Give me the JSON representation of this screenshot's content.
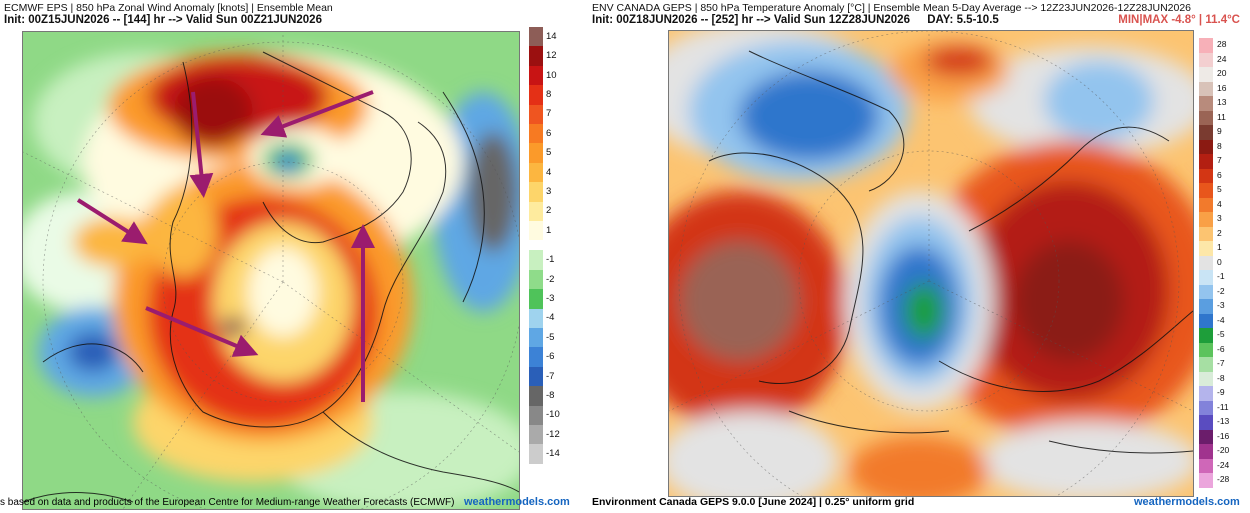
{
  "left": {
    "title": "ECMWF EPS | 850 hPa Zonal Wind Anomaly [knots] | Ensemble Mean",
    "init": "Init: 00Z15JUN2026 -- [144] hr --> Valid Sun 00Z21JUN2026",
    "footer": "s based on data and products of the European Centre for Medium-range Weather Forecasts (ECMWF)",
    "credit": "weathermodels.com",
    "colorbar": [
      {
        "label": "14",
        "color": "#8d5d57"
      },
      {
        "label": "12",
        "color": "#9b1010"
      },
      {
        "label": "10",
        "color": "#c81414"
      },
      {
        "label": "8",
        "color": "#e43016"
      },
      {
        "label": "7",
        "color": "#ef5520"
      },
      {
        "label": "6",
        "color": "#f77a22"
      },
      {
        "label": "5",
        "color": "#fb9a2a"
      },
      {
        "label": "4",
        "color": "#fcb640"
      },
      {
        "label": "3",
        "color": "#fdd56a"
      },
      {
        "label": "2",
        "color": "#feeb9e"
      },
      {
        "label": "1",
        "color": "#fffbe0"
      },
      {
        "label": "-1",
        "color": "#c8f0c0"
      },
      {
        "label": "-2",
        "color": "#8fdc8a"
      },
      {
        "label": "-3",
        "color": "#4fc35a"
      },
      {
        "label": "-4",
        "color": "#9fd3ee"
      },
      {
        "label": "-5",
        "color": "#5fa7e4"
      },
      {
        "label": "-6",
        "color": "#3c82d6"
      },
      {
        "label": "-7",
        "color": "#2a5fb8"
      },
      {
        "label": "-8",
        "color": "#666666"
      },
      {
        "label": "-10",
        "color": "#888888"
      },
      {
        "label": "-12",
        "color": "#aaaaaa"
      },
      {
        "label": "-14",
        "color": "#cccccc"
      }
    ]
  },
  "right": {
    "title": "ENV CANADA GEPS | 850 hPa Temperature Anomaly [°C] | Ensemble Mean 5-Day Average --> 12Z23JUN2026-12Z28JUN2026",
    "init": "Init: 00Z18JUN2026 -- [252] hr --> Valid Sun 12Z28JUN2026",
    "day": "DAY: 5.5-10.5",
    "minmax": "MIN|MAX -4.8° | 11.4°C",
    "footer": "Environment Canada GEPS 9.0.0 [June 2024] | 0.25° uniform grid",
    "credit": "weathermodels.com",
    "colorbar": [
      {
        "label": "28",
        "color": "#f7b0b8"
      },
      {
        "label": "24",
        "color": "#f3cfd0"
      },
      {
        "label": "20",
        "color": "#eeeae6"
      },
      {
        "label": "16",
        "color": "#d8c2b8"
      },
      {
        "label": "13",
        "color": "#b88b7c"
      },
      {
        "label": "11",
        "color": "#9a6455"
      },
      {
        "label": "9",
        "color": "#7a3b30"
      },
      {
        "label": "8",
        "color": "#8b1a12"
      },
      {
        "label": "7",
        "color": "#b31f12"
      },
      {
        "label": "6",
        "color": "#d33614"
      },
      {
        "label": "5",
        "color": "#e8561c"
      },
      {
        "label": "4",
        "color": "#f27a2c"
      },
      {
        "label": "3",
        "color": "#f9a046"
      },
      {
        "label": "2",
        "color": "#fcc471"
      },
      {
        "label": "1",
        "color": "#fde7a8"
      },
      {
        "label": "0",
        "color": "#e3e3e3"
      },
      {
        "label": "-1",
        "color": "#c9e4f5"
      },
      {
        "label": "-2",
        "color": "#93c4ee"
      },
      {
        "label": "-3",
        "color": "#5a9ee0"
      },
      {
        "label": "-4",
        "color": "#2f76cc"
      },
      {
        "label": "-5",
        "color": "#1e9e3a"
      },
      {
        "label": "-6",
        "color": "#5cc35c"
      },
      {
        "label": "-7",
        "color": "#a6dfa3"
      },
      {
        "label": "-8",
        "color": "#d9ecd9"
      },
      {
        "label": "-9",
        "color": "#b4b4ec"
      },
      {
        "label": "-11",
        "color": "#8282da"
      },
      {
        "label": "-13",
        "color": "#5a4cc0"
      },
      {
        "label": "-16",
        "color": "#6b1d6b"
      },
      {
        "label": "-20",
        "color": "#a0338e"
      },
      {
        "label": "-24",
        "color": "#cf67b8"
      },
      {
        "label": "-28",
        "color": "#eba5dc"
      }
    ]
  }
}
